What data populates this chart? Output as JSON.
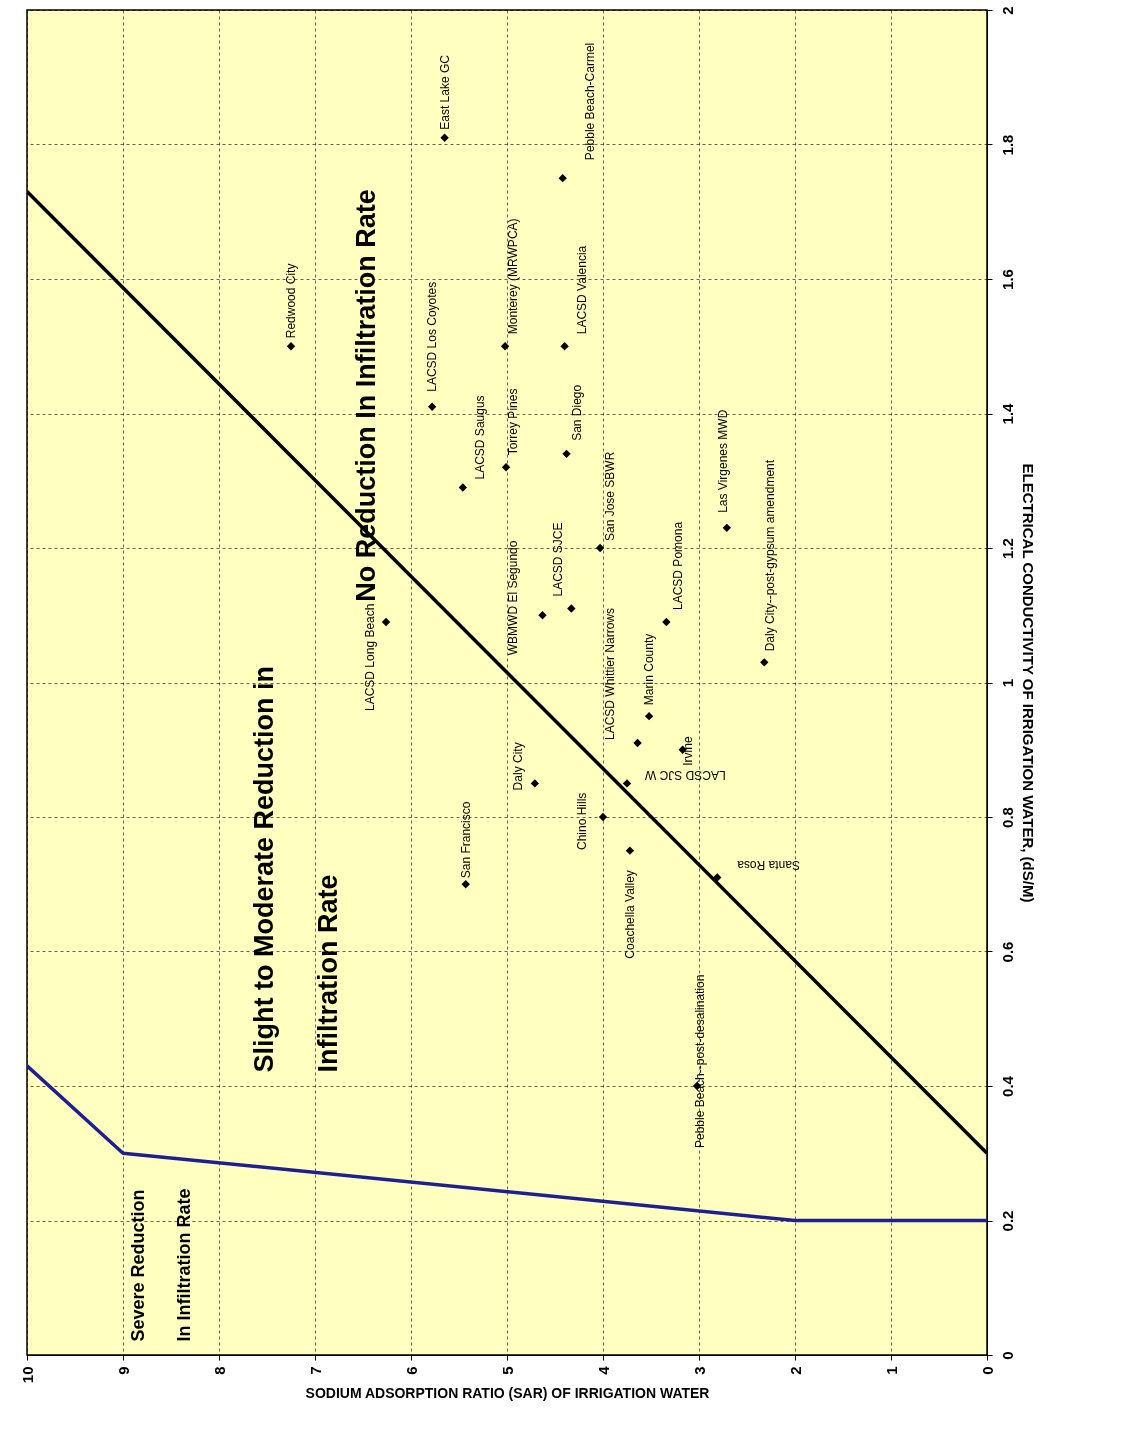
{
  "chart_data": {
    "type": "scatter",
    "xlabel": "SODIUM ADSORPTION RATIO (SAR) OF IRRIGATION WATER",
    "ylabel": "ELECTRICAL CONDUCTIVITY OF IRRIGATION WATER, (dS/M)",
    "xlim": [
      10,
      0
    ],
    "xticks": [
      0,
      1,
      2,
      3,
      4,
      5,
      6,
      7,
      8,
      9,
      10
    ],
    "ylim": [
      0,
      2
    ],
    "yticks": [
      0,
      0.2,
      0.4,
      0.6,
      0.8,
      1,
      1.2,
      1.4,
      1.6,
      1.8,
      2
    ],
    "grid": true,
    "series": [
      {
        "marker": "diamond",
        "color": "#000000",
        "x": [
          7.25,
          5.65,
          4.42,
          5.78,
          5.02,
          4.4,
          5.46,
          5.01,
          4.38,
          4.03,
          2.71,
          6.26,
          4.63,
          4.33,
          3.34,
          2.32,
          3.64,
          3.52,
          3.17,
          4.71,
          3.75,
          4.0,
          3.72,
          2.81,
          5.43,
          3.02
        ],
        "values": [
          1.5,
          1.81,
          1.75,
          1.41,
          1.5,
          1.5,
          1.29,
          1.32,
          1.34,
          1.2,
          1.23,
          1.09,
          1.1,
          1.11,
          1.09,
          1.03,
          0.91,
          0.95,
          0.9,
          0.85,
          0.85,
          0.8,
          0.75,
          0.71,
          0.7,
          0.4
        ]
      },
      {
        "type": "line",
        "color": "#000000",
        "x": [
          0,
          10
        ],
        "values": [
          0.3,
          1.73
        ]
      },
      {
        "type": "line",
        "color": "#1f1f8f",
        "x": [
          0,
          2,
          9,
          10
        ],
        "values": [
          0.2,
          0.2,
          0.3,
          0.43
        ]
      }
    ],
    "annotations": [
      {
        "text": "Redwood City",
        "x": 7.25,
        "y": 1.5
      },
      {
        "text": "East Lake GC",
        "x": 5.65,
        "y": 1.81
      },
      {
        "text": "Pebble Beach-Carmel",
        "x": 4.42,
        "y": 1.75
      },
      {
        "text": "LACSD Los Coyotes",
        "x": 5.78,
        "y": 1.41
      },
      {
        "text": "Monterey (MRWPCA)",
        "x": 5.02,
        "y": 1.5
      },
      {
        "text": "LACSD Valencia",
        "x": 4.4,
        "y": 1.5
      },
      {
        "text": "LACSD Saugus",
        "x": 5.46,
        "y": 1.29
      },
      {
        "text": "Torrey Pines",
        "x": 5.01,
        "y": 1.32
      },
      {
        "text": "San Diego",
        "x": 4.38,
        "y": 1.34
      },
      {
        "text": "San Jose SBWR",
        "x": 4.03,
        "y": 1.2
      },
      {
        "text": "Las Virgenes MWD",
        "x": 2.71,
        "y": 1.23
      },
      {
        "text": "LACSD Long Beach",
        "x": 6.26,
        "y": 1.09
      },
      {
        "text": "WBMWD El Segundo",
        "x": 4.63,
        "y": 1.1
      },
      {
        "text": "LACSD SJCE",
        "x": 4.33,
        "y": 1.11
      },
      {
        "text": "LACSD Pomona",
        "x": 3.34,
        "y": 1.09
      },
      {
        "text": "Daly City--post-gypsum amendment",
        "x": 2.32,
        "y": 1.03
      },
      {
        "text": "LACSD Whittier Narrows",
        "x": 3.64,
        "y": 0.91
      },
      {
        "text": "Marin County",
        "x": 3.52,
        "y": 0.95
      },
      {
        "text": "Irvine",
        "x": 3.17,
        "y": 0.9
      },
      {
        "text": "Daly City",
        "x": 4.71,
        "y": 0.85
      },
      {
        "text": "LACSD SJC W",
        "x": 3.75,
        "y": 0.85
      },
      {
        "text": "Chino Hills",
        "x": 4.0,
        "y": 0.8
      },
      {
        "text": "Coachella Valley",
        "x": 3.72,
        "y": 0.75
      },
      {
        "text": "Santa Rosa",
        "x": 2.81,
        "y": 0.71
      },
      {
        "text": "San Francisco",
        "x": 5.43,
        "y": 0.7
      },
      {
        "text": "Pebble Beach--post-desalination",
        "x": 3.02,
        "y": 0.4
      },
      "Slight to Moderate Reduction in",
      "Infiltration Rate",
      "No Reduction In Infiltration Rate",
      "Severe Reduction",
      "In Infiltration Rate"
    ]
  }
}
